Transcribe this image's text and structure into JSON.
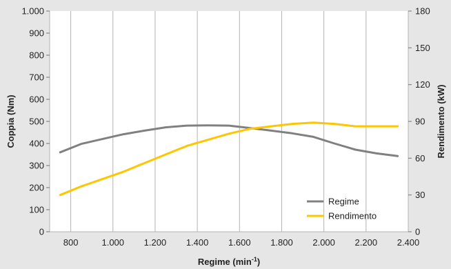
{
  "chart_data": {
    "type": "line",
    "x": [
      750,
      850,
      950,
      1050,
      1150,
      1250,
      1350,
      1450,
      1550,
      1650,
      1750,
      1850,
      1950,
      2050,
      2150,
      2250,
      2350
    ],
    "series": [
      {
        "name": "Regime",
        "axis": "left",
        "color": "#808080",
        "values": [
          360,
          398,
          420,
          442,
          458,
          473,
          481,
          482,
          481,
          470,
          458,
          446,
          430,
          400,
          372,
          355,
          343
        ]
      },
      {
        "name": "Rendimento",
        "axis": "right",
        "color": "#ffc600",
        "values": [
          30,
          37,
          43,
          49,
          56,
          63,
          70,
          75,
          80,
          84,
          86,
          88,
          89,
          88,
          86,
          86,
          86
        ]
      }
    ],
    "xlabel": "Regime (min",
    "xlabel_sup": "-1",
    "xlabel_end": ")",
    "ylabel": "Coppia (Nm)",
    "ylabel_right": "Rendimento (kW)",
    "xlim": [
      700,
      2400
    ],
    "ylim": [
      0,
      1000
    ],
    "ylim_right": [
      0,
      180
    ],
    "x_ticks": [
      800,
      1000,
      1200,
      1400,
      1600,
      1800,
      2000,
      2200,
      2400
    ],
    "x_tick_labels": [
      "800",
      "1.000",
      "1.200",
      "1.400",
      "1.600",
      "1.800",
      "2.000",
      "2.200",
      "2.400"
    ],
    "y_ticks": [
      0,
      100,
      200,
      300,
      400,
      500,
      600,
      700,
      800,
      900,
      1000
    ],
    "y_tick_labels": [
      "0",
      "100",
      "200",
      "300",
      "400",
      "500",
      "600",
      "700",
      "800",
      "900",
      "1.000"
    ],
    "y_right_ticks": [
      0,
      30,
      60,
      90,
      120,
      150,
      180
    ],
    "y_right_tick_labels": [
      "0",
      "30",
      "60",
      "90",
      "120",
      "150",
      "180"
    ],
    "grid": "vertical",
    "legend": "bottom-right"
  }
}
